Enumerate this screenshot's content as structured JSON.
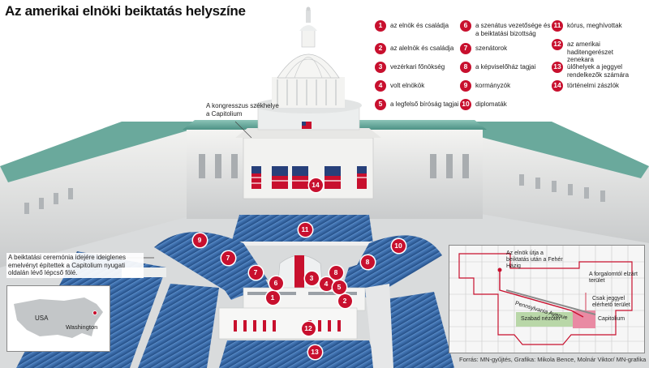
{
  "title": "Az amerikai elnöki beiktatás helyszíne",
  "legend": [
    {
      "num": "1",
      "text": "az elnök és családja"
    },
    {
      "num": "2",
      "text": "az alelnök és családja"
    },
    {
      "num": "3",
      "text": "vezérkari főnökség"
    },
    {
      "num": "4",
      "text": "volt elnökök"
    },
    {
      "num": "5",
      "text": "a legfelső bíróság tagjai"
    },
    {
      "num": "6",
      "text": "a szenátus vezetősége és a beiktatási bizottság"
    },
    {
      "num": "7",
      "text": "szenátorok"
    },
    {
      "num": "8",
      "text": "a képviselőház tagjai"
    },
    {
      "num": "9",
      "text": "kormányzók"
    },
    {
      "num": "10",
      "text": "diplomaták"
    },
    {
      "num": "11",
      "text": "kórus, meghívottak"
    },
    {
      "num": "12",
      "text": "az amerikai haditengerészet zenekara"
    },
    {
      "num": "13",
      "text": "ülőhelyek a jeggyel rendelkezők számára"
    },
    {
      "num": "14",
      "text": "történelmi zászlók"
    }
  ],
  "callouts": {
    "capitol": "A kongresszus székhelye a Capitolium",
    "platform": "A beiktatási ceremónia idejére ideiglenes emelvényt építettek a Capitolium nyugati oldalán lévő lépcső fölé."
  },
  "markers": [
    "1",
    "2",
    "3",
    "4",
    "5",
    "6",
    "7",
    "8",
    "9",
    "10",
    "11",
    "12",
    "13",
    "14"
  ],
  "inset_usa": {
    "country": "USA",
    "city": "Washington"
  },
  "inset_map": {
    "route": "Az elnök útja a beiktatás után a Fehér Házig",
    "restricted": "A forgalomtól elzárt terület",
    "ticket": "Csak jeggyel elérhető terület",
    "avenue": "Pennsylvania Avenue",
    "free": "Szabad nézőtér",
    "capitol": "Capitolium"
  },
  "source": "Forrás: MN-gyűjtés, Grafika: Mikola Bence, Molnár Viktor/ MN-grafika",
  "colors": {
    "accent": "#c8102e",
    "seat_blue": "#2f5f9e",
    "roof_green": "#5fa59a",
    "map_green": "#b9d7a8",
    "map_pink": "#e98aa3"
  }
}
